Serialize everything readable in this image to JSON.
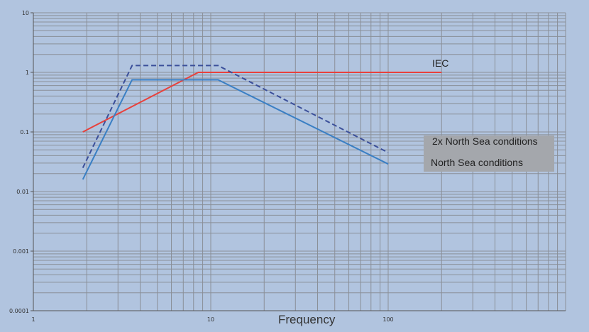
{
  "chart_data": {
    "type": "line",
    "title": "",
    "xlabel": "Frequency",
    "ylabel": "",
    "x_scale": "log",
    "y_scale": "log",
    "xlim": [
      1,
      1000
    ],
    "ylim": [
      0.0001,
      10
    ],
    "grid": true,
    "x_tick_labels": [
      "1",
      "10",
      "100"
    ],
    "y_tick_labels": [
      "10",
      "1",
      "0.1",
      "0.01",
      "0.001",
      "0.0001"
    ],
    "series": [
      {
        "name": "IEC",
        "color": "#e8413c",
        "style": "solid",
        "x": [
          1.9,
          8.5,
          200
        ],
        "y": [
          0.1,
          1.0,
          1.0
        ]
      },
      {
        "name": "2x North Sea conditions",
        "color": "#3b4f9a",
        "style": "dashed",
        "x": [
          1.9,
          3.6,
          11,
          100
        ],
        "y": [
          0.025,
          1.3,
          1.3,
          0.045
        ]
      },
      {
        "name": "North Sea conditions",
        "color": "#3a7fc4",
        "style": "solid",
        "x": [
          1.9,
          3.6,
          11,
          100
        ],
        "y": [
          0.016,
          0.75,
          0.75,
          0.029
        ]
      }
    ]
  }
}
